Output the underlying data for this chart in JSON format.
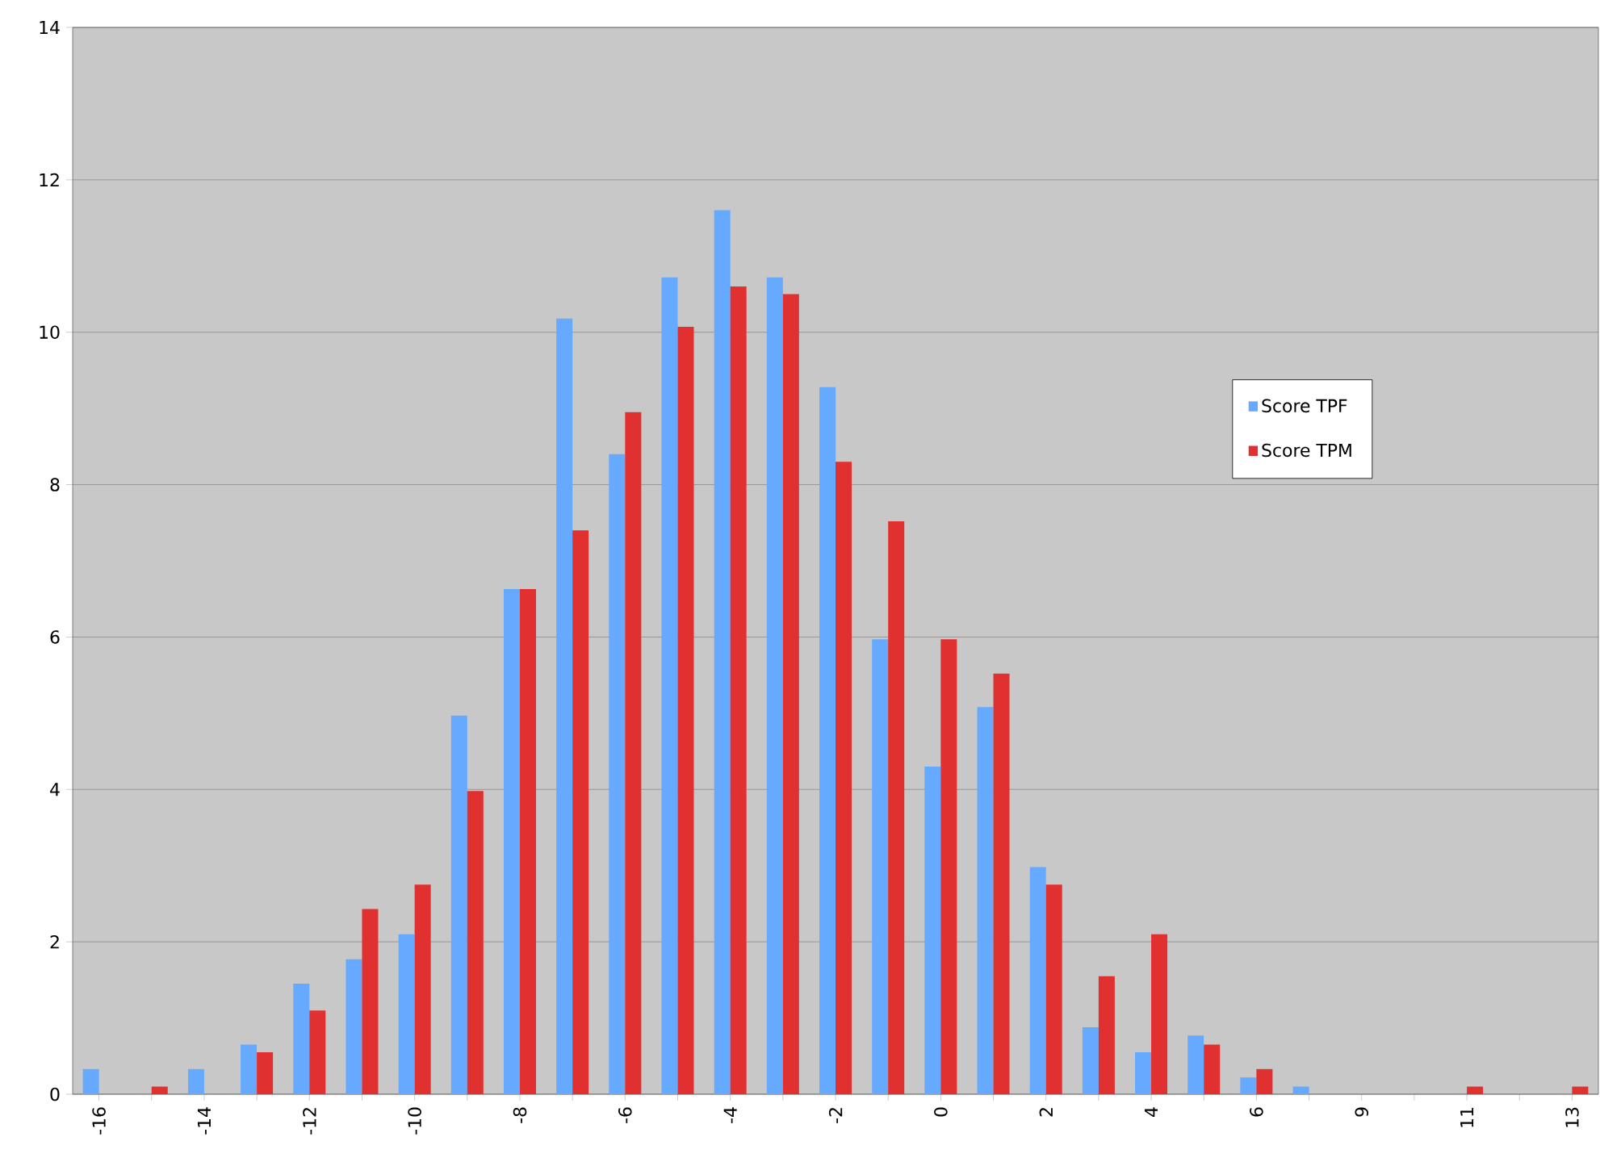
{
  "chart_data": {
    "type": "bar",
    "categories": [
      "-16",
      null,
      "-14",
      null,
      "-12",
      null,
      "-10",
      null,
      "-8",
      null,
      "-6",
      null,
      "-4",
      null,
      "-2",
      null,
      "0",
      null,
      "2",
      null,
      "4",
      null,
      "6",
      null,
      "9",
      null,
      "11",
      null,
      "13"
    ],
    "series": [
      {
        "name": "Score TPF",
        "color": "#66aaff",
        "values": [
          0.33,
          0,
          0.33,
          0.65,
          1.45,
          1.77,
          2.1,
          4.97,
          6.63,
          10.18,
          8.4,
          10.72,
          11.6,
          10.72,
          9.28,
          5.97,
          4.3,
          5.08,
          2.98,
          0.88,
          0.55,
          0.77,
          0.22,
          0.1,
          0,
          0,
          0,
          0,
          0
        ]
      },
      {
        "name": "Score TPM",
        "color": "#e03030",
        "values": [
          0,
          0.1,
          0,
          0.55,
          1.1,
          2.43,
          2.75,
          3.98,
          6.63,
          7.4,
          8.95,
          10.07,
          10.6,
          10.5,
          8.3,
          7.52,
          5.97,
          5.52,
          2.75,
          1.55,
          2.1,
          0.65,
          0.33,
          0,
          0,
          0,
          0.1,
          0,
          0.1
        ]
      }
    ],
    "ylim": [
      0,
      14
    ],
    "yticks": [
      0,
      2,
      4,
      6,
      8,
      10,
      12,
      14
    ],
    "grid": "y",
    "legend": "right"
  }
}
